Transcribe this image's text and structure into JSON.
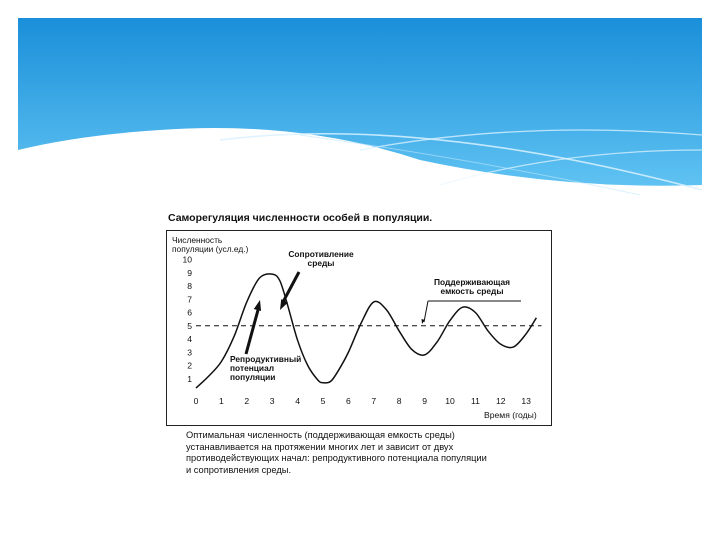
{
  "figure": {
    "title": "Саморегуляция численности особей в популяции.",
    "caption_lines": [
      "Оптимальная численность (поддерживающая емкость среды)",
      "устанавливается на протяжении многих лет и зависит от двух",
      "противодействующих начал: репродуктивного потенциала популяции",
      "и сопротивления среды."
    ]
  },
  "colors": {
    "banner_top": "#1a8fd9",
    "banner_bottom": "#5fc2f2",
    "curve": "#111111",
    "dashed_line": "#111111"
  },
  "chart_data": {
    "type": "line",
    "ylabel_lines": [
      "Численность",
      "популяции (усл.ед.)"
    ],
    "xlabel": "Время (годы)",
    "x_ticks": [
      0,
      1,
      2,
      3,
      4,
      5,
      6,
      7,
      8,
      9,
      10,
      11,
      12,
      13
    ],
    "y_ticks": [
      1,
      2,
      3,
      4,
      5,
      6,
      7,
      8,
      9,
      10
    ],
    "xlim": [
      0,
      13.6
    ],
    "ylim": [
      0,
      10
    ],
    "carrying_capacity": 5,
    "series": [
      {
        "x": [
          0,
          0.5,
          1,
          1.5,
          2,
          2.5,
          3,
          3.3,
          3.6,
          4,
          4.4,
          4.8,
          5,
          5.3,
          5.6,
          6,
          6.5,
          7,
          7.5,
          8,
          8.5,
          9,
          9.5,
          10,
          10.5,
          11,
          11.5,
          12,
          12.5,
          13,
          13.4
        ],
        "y": [
          0.3,
          1.2,
          2.3,
          4.2,
          6.8,
          8.6,
          8.9,
          8.4,
          6.6,
          3.9,
          2.0,
          0.9,
          0.7,
          0.8,
          1.6,
          3.0,
          5.2,
          6.8,
          6.2,
          4.6,
          3.2,
          2.8,
          3.8,
          5.4,
          6.4,
          6.0,
          4.6,
          3.6,
          3.4,
          4.4,
          5.6
        ]
      }
    ],
    "annotations": {
      "resistance": [
        "Сопротивление",
        "среды"
      ],
      "capacity": [
        "Поддерживающая",
        "емкость среды"
      ],
      "potential": [
        "Репродуктивный",
        "потенциал",
        "популяции"
      ]
    }
  }
}
